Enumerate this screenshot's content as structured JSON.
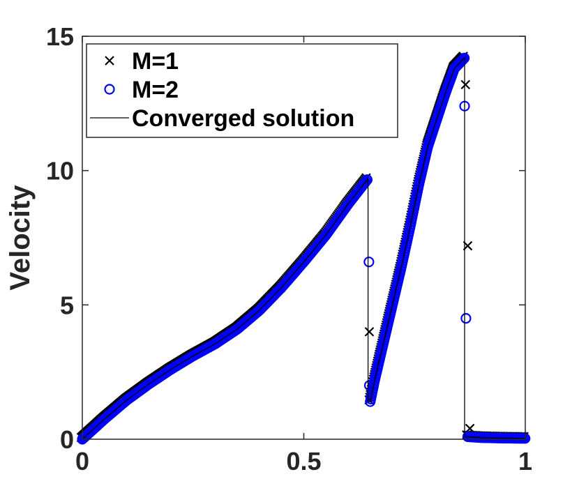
{
  "chart_data": {
    "type": "scatter",
    "xlabel": "",
    "ylabel": "Velocity",
    "xlim": [
      0,
      1
    ],
    "ylim": [
      0,
      15
    ],
    "xticks": [
      0,
      0.5,
      1
    ],
    "xtick_labels": [
      "0",
      "0.5",
      "1"
    ],
    "yticks": [
      0,
      5,
      10,
      15
    ],
    "ytick_labels": [
      "0",
      "5",
      "10",
      "15"
    ],
    "grid": false,
    "legend_position": "top-left",
    "series": [
      {
        "name": "M=1",
        "marker": "x",
        "color": "#000000",
        "points": [
          [
            0.648,
            4.0
          ],
          [
            0.865,
            13.2
          ],
          [
            0.87,
            7.2
          ],
          [
            0.875,
            0.4
          ]
        ]
      },
      {
        "name": "M=2",
        "marker": "o",
        "color": "#0000ff",
        "points": [
          [
            0.647,
            6.6
          ],
          [
            0.648,
            2.0
          ],
          [
            0.863,
            12.4
          ],
          [
            0.866,
            4.5
          ]
        ]
      },
      {
        "name": "Converged solution",
        "marker": "line",
        "color": "#000000",
        "x": [
          0,
          0.05,
          0.1,
          0.15,
          0.2,
          0.25,
          0.3,
          0.35,
          0.4,
          0.45,
          0.5,
          0.55,
          0.6,
          0.645,
          0.645,
          0.65,
          0.66,
          0.68,
          0.7,
          0.72,
          0.74,
          0.76,
          0.78,
          0.8,
          0.82,
          0.84,
          0.863,
          0.863,
          0.9,
          0.95,
          1.0
        ],
        "y": [
          0,
          0.75,
          1.45,
          2.05,
          2.6,
          3.1,
          3.55,
          4.1,
          4.8,
          5.65,
          6.6,
          7.6,
          8.75,
          9.7,
          1.4,
          1.4,
          2.2,
          3.6,
          5.0,
          6.4,
          7.9,
          9.5,
          10.9,
          11.9,
          12.9,
          13.8,
          14.2,
          0.1,
          0.06,
          0.04,
          0.03
        ]
      }
    ]
  }
}
